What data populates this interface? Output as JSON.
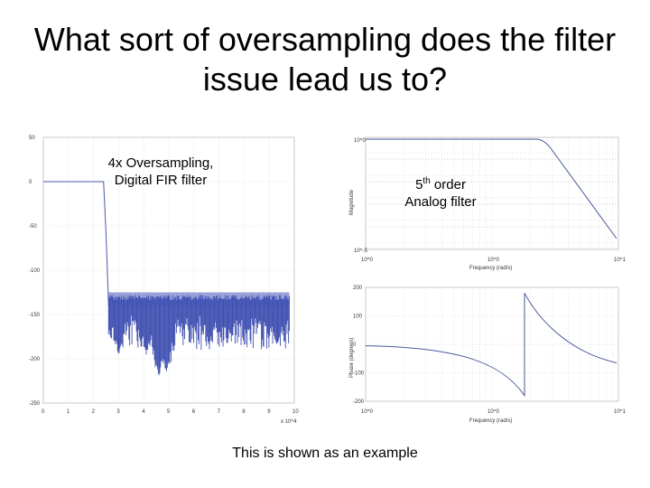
{
  "slide": {
    "title": "What sort of oversampling does the filter issue lead us to?",
    "fir_label_line1": "4x Oversampling,",
    "fir_label_line2": "Digital FIR filter",
    "analog_label_base": "5",
    "analog_label_sup": "th",
    "analog_label_rest": " order",
    "analog_label_line2": "Analog filter",
    "footer": "This is shown as an example"
  },
  "chart_data": [
    {
      "type": "line",
      "description_name": "fir-response",
      "x_ticks": [
        "0",
        "1",
        "2",
        "3",
        "4",
        "5",
        "6",
        "7",
        "8",
        "9",
        "10"
      ],
      "x_multiplier": "x 10^4",
      "y_ticks": [
        "50",
        "0",
        "-50",
        "-100",
        "-150",
        "-200",
        "-250"
      ],
      "ylim": [
        -250,
        50
      ],
      "xlim": [
        0,
        10
      ],
      "grid": true
    },
    {
      "type": "line",
      "description_name": "magnitude",
      "ylabel": "Magnitude",
      "xlabel": "Frequency (rad/s)",
      "x_ticks": [
        "10^0",
        "10^1"
      ],
      "y_ticks": [
        "10^0",
        "10^-5"
      ],
      "scale": "log-log",
      "grid": true
    },
    {
      "type": "line",
      "description_name": "phase",
      "ylabel": "Phase (degrees)",
      "xlabel": "Frequency (rad/s)",
      "x_ticks": [
        "10^0",
        "10^1"
      ],
      "y_ticks": [
        "200",
        "100",
        "0",
        "-100",
        "-200"
      ],
      "ylim": [
        -200,
        200
      ],
      "grid": true
    }
  ]
}
